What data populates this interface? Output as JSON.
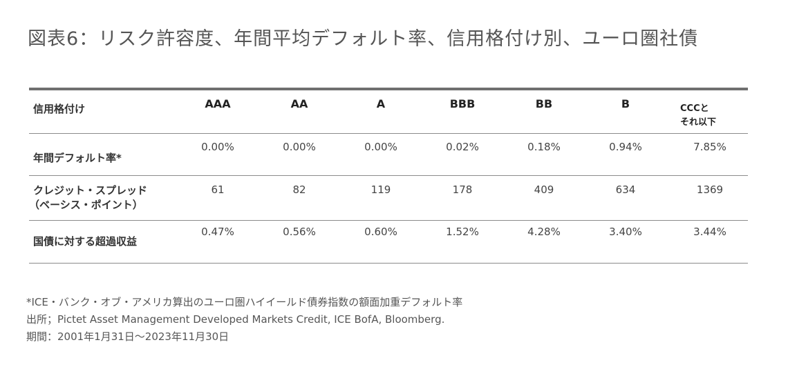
{
  "title": "図表6：リスク許容度、年間平均デフォルト率、信用格付け別、ユーロ圏社債",
  "table": {
    "corner_label": "信用格付け",
    "ratings": [
      "AAA",
      "AA",
      "A",
      "BBB",
      "BB",
      "B"
    ],
    "last_rating_line1": "CCCと",
    "last_rating_line2": "それ以下",
    "rows": [
      {
        "label_line1": "年間デフォルト率*",
        "values": [
          "0.00%",
          "0.00%",
          "0.00%",
          "0.02%",
          "0.18%",
          "0.94%",
          "7.85%"
        ]
      },
      {
        "label_line1": "クレジット・スプレッド",
        "label_line2": "（ベーシス・ポイント）",
        "values": [
          "61",
          "82",
          "119",
          "178",
          "409",
          "634",
          "1369"
        ]
      },
      {
        "label_line1": "国債に対する超過収益",
        "values": [
          "0.47%",
          "0.56%",
          "0.60%",
          "1.52%",
          "4.28%",
          "3.40%",
          "3.44%"
        ]
      }
    ]
  },
  "footnotes": {
    "note": "*ICE・バンク・オブ・アメリカ算出のユーロ圏ハイイールド債券指数の額面加重デフォルト率",
    "source": "出所；Pictet Asset Management Developed Markets Credit, ICE BofA, Bloomberg.",
    "period": "期間：2001年1月31日～2023年11月30日"
  }
}
